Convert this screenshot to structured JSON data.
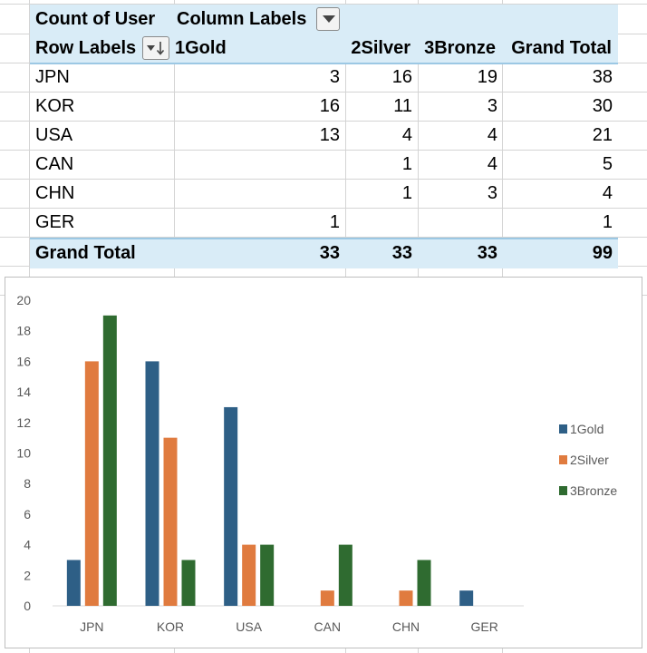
{
  "pivot": {
    "header": {
      "values_caption": "Count of User",
      "column_labels": "Column Labels",
      "row_labels": "Row Labels",
      "columns": [
        "1Gold",
        "2Silver",
        "3Bronze",
        "Grand Total"
      ]
    },
    "rows": [
      {
        "label": "JPN",
        "cells": [
          "3",
          "16",
          "19",
          "38"
        ]
      },
      {
        "label": "KOR",
        "cells": [
          "16",
          "11",
          "3",
          "30"
        ]
      },
      {
        "label": "USA",
        "cells": [
          "13",
          "4",
          "4",
          "21"
        ]
      },
      {
        "label": "CAN",
        "cells": [
          "",
          "1",
          "4",
          "5"
        ]
      },
      {
        "label": "CHN",
        "cells": [
          "",
          "1",
          "3",
          "4"
        ]
      },
      {
        "label": "GER",
        "cells": [
          "1",
          "",
          "",
          "1"
        ]
      }
    ],
    "total": {
      "label": "Grand Total",
      "cells": [
        "33",
        "33",
        "33",
        "99"
      ]
    }
  },
  "chart_data": {
    "type": "bar",
    "title": "",
    "xlabel": "",
    "ylabel": "",
    "ylim": [
      0,
      20
    ],
    "ytick_step": 2,
    "yticks": [
      "0",
      "2",
      "4",
      "6",
      "8",
      "10",
      "12",
      "14",
      "16",
      "18",
      "20"
    ],
    "categories": [
      "JPN",
      "KOR",
      "USA",
      "CAN",
      "CHN",
      "GER"
    ],
    "series": [
      {
        "name": "1Gold",
        "color": "#2e5f86",
        "values": [
          3,
          16,
          13,
          0,
          0,
          1
        ]
      },
      {
        "name": "2Silver",
        "color": "#e07b3f",
        "values": [
          16,
          11,
          4,
          1,
          1,
          0
        ]
      },
      {
        "name": "3Bronze",
        "color": "#2f6b30",
        "values": [
          19,
          3,
          4,
          4,
          3,
          0
        ]
      }
    ],
    "grid": false,
    "legend": "right"
  }
}
